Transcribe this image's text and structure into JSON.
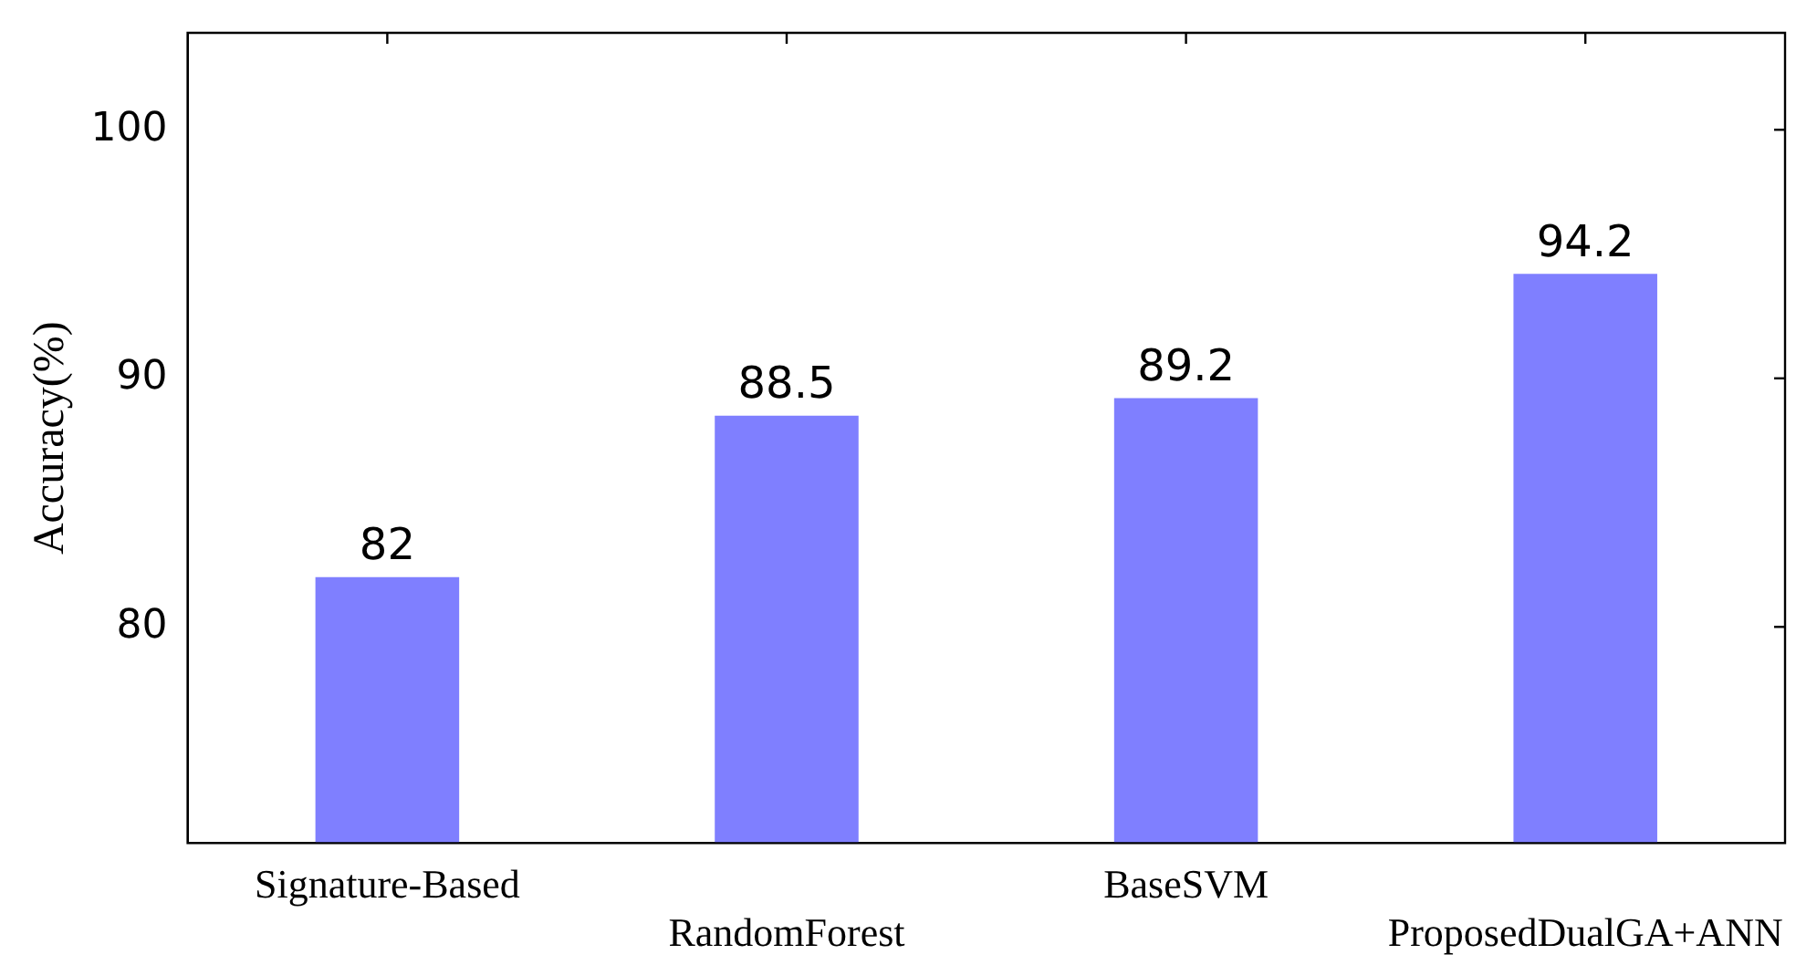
{
  "chart_data": {
    "type": "bar",
    "ylabel": "Accuracy(%)",
    "categories": [
      "Signature-Based",
      "RandomForest",
      "BaseSVM",
      "ProposedDualGA+ANN"
    ],
    "values": [
      82,
      88.5,
      89.2,
      94.2
    ],
    "color": "#7f7fff",
    "ylim": [
      71.3,
      103.9
    ],
    "yticks": [
      80,
      90,
      100
    ],
    "grid": false,
    "data_labels": true
  }
}
